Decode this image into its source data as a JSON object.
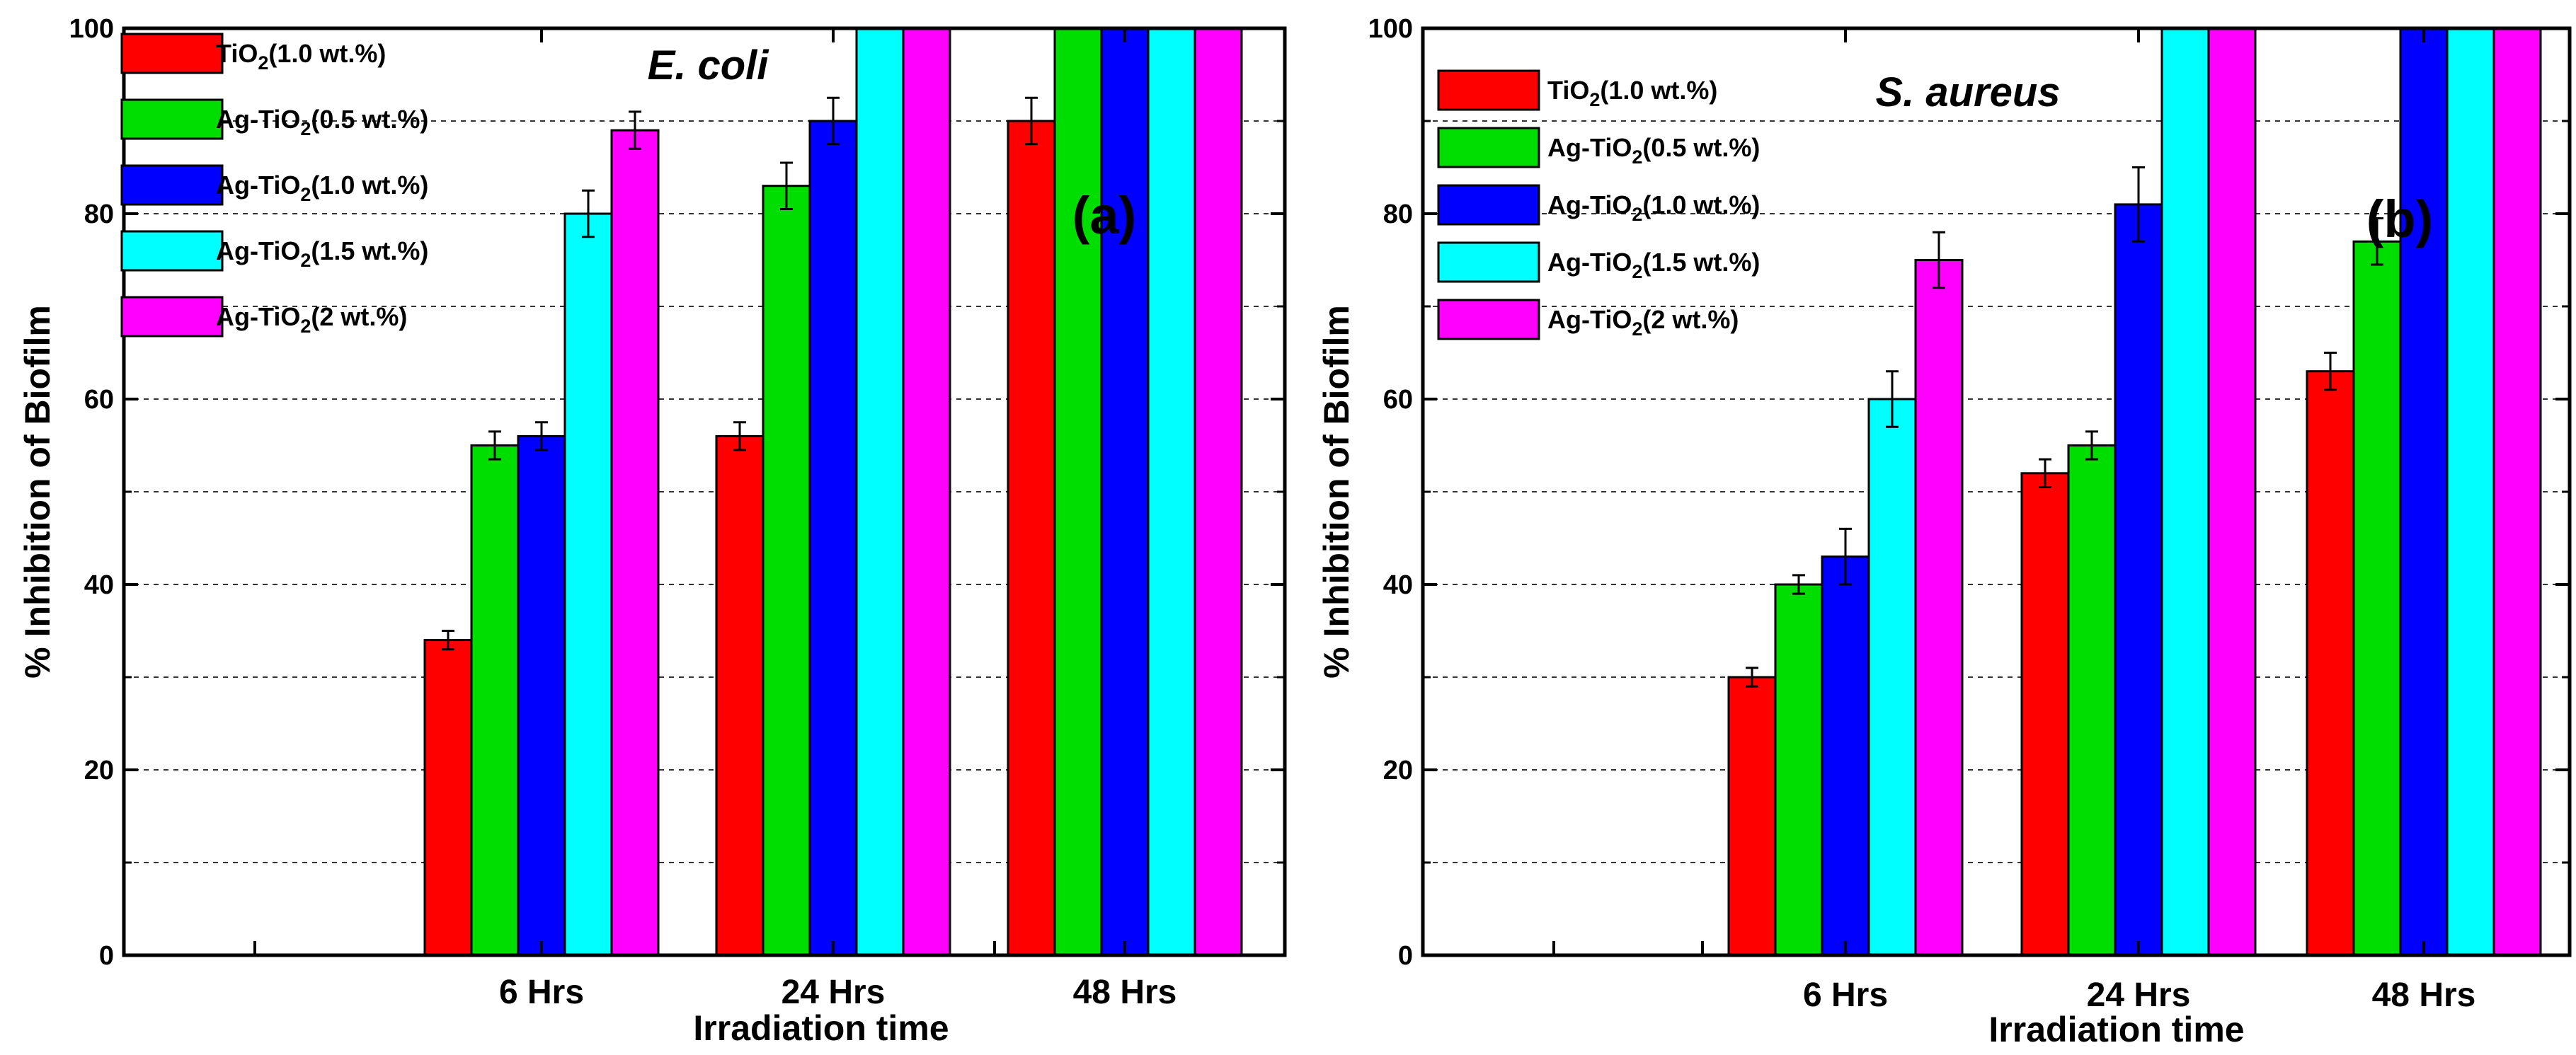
{
  "chart_data": [
    {
      "type": "bar",
      "panel": "(a)",
      "organism": "E. coli",
      "xlabel": "Irradiation time",
      "ylabel": "% Inhibition of Biofilm",
      "ylim": [
        0,
        100
      ],
      "yticks": [
        "0",
        "20",
        "40",
        "60",
        "80",
        "100"
      ],
      "grid": "dashed-horizontal",
      "legend_position": "top-left",
      "categories": [
        "6 Hrs",
        "24 Hrs",
        "48 Hrs"
      ],
      "series": [
        {
          "name": "TiO2(1.0 wt.%)",
          "label_main": "TiO",
          "label_tail": "(1.0 wt.%)",
          "color": "#ff0000",
          "values": [
            34,
            56,
            90
          ],
          "errors": [
            1,
            1.5,
            2.5
          ]
        },
        {
          "name": "Ag-TiO2(0.5 wt.%)",
          "label_main": "Ag-TiO",
          "label_tail": "(0.5 wt.%)",
          "color": "#00dd00",
          "values": [
            55,
            83,
            100
          ],
          "errors": [
            1.5,
            2.5,
            0
          ]
        },
        {
          "name": "Ag-TiO2(1.0 wt.%)",
          "label_main": "Ag-TiO",
          "label_tail": "(1.0 wt.%)",
          "color": "#0000ff",
          "values": [
            56,
            90,
            100
          ],
          "errors": [
            1.5,
            2.5,
            0
          ]
        },
        {
          "name": "Ag-TiO2(1.5 wt.%)",
          "label_main": "Ag-TiO",
          "label_tail": "(1.5 wt.%)",
          "color": "#00ffff",
          "values": [
            80,
            100,
            100
          ],
          "errors": [
            2.5,
            0,
            0
          ]
        },
        {
          "name": "Ag-TiO2(2 wt.%)",
          "label_main": "Ag-TiO",
          "label_tail": "(2 wt.%)",
          "color": "#ff00ff",
          "values": [
            89,
            100,
            100
          ],
          "errors": [
            2,
            0,
            0
          ]
        }
      ]
    },
    {
      "type": "bar",
      "panel": "(b)",
      "organism": "S. aureus",
      "xlabel": "Irradiation time",
      "ylabel": "% Inhibition of Biofilm",
      "ylim": [
        0,
        100
      ],
      "yticks": [
        "0",
        "20",
        "40",
        "60",
        "80",
        "100"
      ],
      "grid": "dashed-horizontal",
      "legend_position": "top-left",
      "categories": [
        "6 Hrs",
        "24 Hrs",
        "48 Hrs"
      ],
      "series": [
        {
          "name": "TiO2(1.0 wt.%)",
          "label_main": "TiO",
          "label_tail": "(1.0 wt.%)",
          "color": "#ff0000",
          "values": [
            30,
            52,
            63
          ],
          "errors": [
            1,
            1.5,
            2
          ]
        },
        {
          "name": "Ag-TiO2(0.5 wt.%)",
          "label_main": "Ag-TiO",
          "label_tail": "(0.5 wt.%)",
          "color": "#00dd00",
          "values": [
            40,
            55,
            77
          ],
          "errors": [
            1,
            1.5,
            2.5
          ]
        },
        {
          "name": "Ag-TiO2(1.0 wt.%)",
          "label_main": "Ag-TiO",
          "label_tail": "(1.0 wt.%)",
          "color": "#0000ff",
          "values": [
            43,
            81,
            100
          ],
          "errors": [
            3,
            4,
            0
          ]
        },
        {
          "name": "Ag-TiO2(1.5 wt.%)",
          "label_main": "Ag-TiO",
          "label_tail": "(1.5 wt.%)",
          "color": "#00ffff",
          "values": [
            60,
            100,
            100
          ],
          "errors": [
            3,
            0,
            0
          ]
        },
        {
          "name": "Ag-TiO2(2 wt.%)",
          "label_main": "Ag-TiO",
          "label_tail": "(2 wt.%)",
          "color": "#ff00ff",
          "values": [
            75,
            100,
            100
          ],
          "errors": [
            3,
            0,
            0
          ]
        }
      ]
    }
  ]
}
